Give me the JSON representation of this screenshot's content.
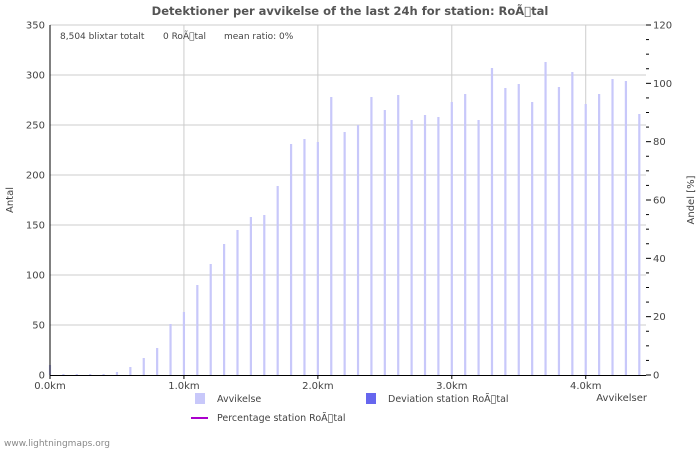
{
  "chart_data": {
    "type": "bar",
    "title": "Detektioner per avvikelse of the last 24h for station: RoÃ\u0000tal",
    "stats": {
      "total": "8,504 blixtar totalt",
      "station": "0 RoÃ\u0000tal",
      "ratio": "mean ratio: 0%"
    },
    "ylabel_left": "Antal",
    "ylabel_right": "Andel [%]",
    "xlabel": "Avvikelser",
    "ylim_left": [
      0,
      350
    ],
    "ylim_right": [
      0,
      120
    ],
    "y_ticks_left": [
      "0",
      "50",
      "100",
      "150",
      "200",
      "250",
      "300",
      "350"
    ],
    "y_ticks_right": [
      "0",
      "20",
      "40",
      "60",
      "80",
      "100",
      "120"
    ],
    "x_ticks": [
      "0.0km",
      "1.0km",
      "2.0km",
      "3.0km",
      "4.0km"
    ],
    "x_tick_values": [
      0,
      1.0,
      2.0,
      3.0,
      4.0
    ],
    "xlim": [
      0,
      4.45
    ],
    "bar_width_km": 0.1,
    "series": [
      {
        "name": "Avvikelse",
        "color": "#c8c8fa",
        "x": [
          0.0,
          0.1,
          0.2,
          0.3,
          0.4,
          0.5,
          0.6,
          0.7,
          0.8,
          0.9,
          1.0,
          1.1,
          1.2,
          1.3,
          1.4,
          1.5,
          1.6,
          1.7,
          1.8,
          1.9,
          2.0,
          2.1,
          2.2,
          2.3,
          2.4,
          2.5,
          2.6,
          2.7,
          2.8,
          2.9,
          3.0,
          3.1,
          3.2,
          3.3,
          3.4,
          3.5,
          3.6,
          3.7,
          3.8,
          3.9,
          4.0,
          4.1,
          4.2,
          4.3,
          4.4
        ],
        "values": [
          10,
          1,
          1,
          1,
          1,
          3,
          8,
          17,
          27,
          51,
          63,
          90,
          111,
          131,
          145,
          158,
          160,
          189,
          231,
          236,
          233,
          278,
          243,
          250,
          278,
          265,
          280,
          255,
          260,
          258,
          273,
          281,
          255,
          307,
          287,
          291,
          273,
          313,
          288,
          303,
          271,
          281,
          296,
          294,
          261
        ]
      },
      {
        "name": "Deviation station RoÃ\u0000tal",
        "color": "#6666ee",
        "values": []
      },
      {
        "name": "Percentage station RoÃ\u0000tal",
        "color": "#aa00cc",
        "values": []
      }
    ],
    "colors": {
      "grid": "#cccccc",
      "axis": "#000000"
    }
  },
  "footer": {
    "credit": "www.lightningmaps.org"
  }
}
